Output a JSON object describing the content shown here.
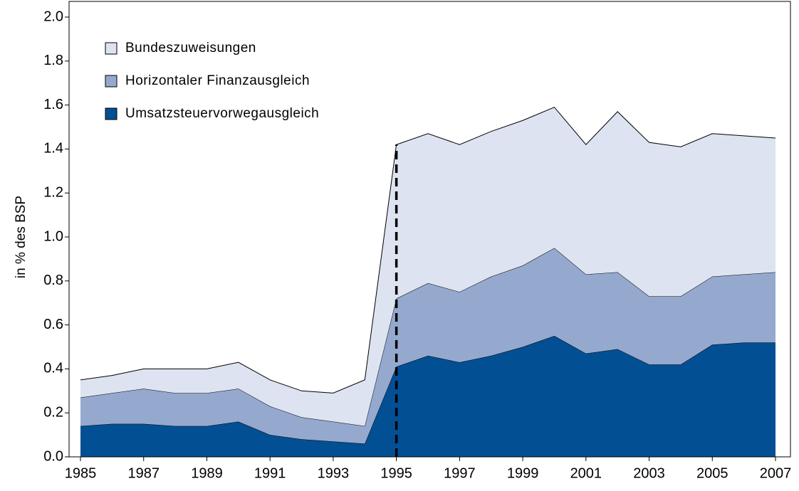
{
  "chart_data": {
    "type": "stacked-area",
    "y_label": "in % des BSP",
    "x": [
      1985,
      1986,
      1987,
      1988,
      1989,
      1990,
      1991,
      1992,
      1993,
      1994,
      1995,
      1996,
      1997,
      1998,
      1999,
      2000,
      2001,
      2002,
      2003,
      2004,
      2005,
      2006,
      2007
    ],
    "xlim": [
      1985,
      2007
    ],
    "xticks": [
      1985,
      1987,
      1989,
      1991,
      1993,
      1995,
      1997,
      1999,
      2001,
      2003,
      2005,
      2007
    ],
    "ylim": [
      0,
      2
    ],
    "yticks": [
      {
        "value": 0,
        "label": "0.0"
      },
      0.2,
      0.4,
      0.6,
      0.8,
      {
        "value": 1,
        "label": "1.0"
      },
      1.2,
      1.4,
      1.6,
      1.8,
      {
        "value": 2,
        "label": "2.0"
      }
    ],
    "series": [
      {
        "name": "Umsatzsteuervorwegausgleich",
        "color": "#034f94",
        "values": [
          0.14,
          0.15,
          0.15,
          0.14,
          0.14,
          0.16,
          0.1,
          0.08,
          0.07,
          0.06,
          0.41,
          0.46,
          0.43,
          0.46,
          0.5,
          0.55,
          0.47,
          0.49,
          0.42,
          0.42,
          0.51,
          0.52,
          0.52
        ]
      },
      {
        "name": "Horizontaler Finanzausgleich",
        "color": "#95a9cf",
        "values": [
          0.13,
          0.14,
          0.16,
          0.15,
          0.15,
          0.15,
          0.13,
          0.1,
          0.09,
          0.08,
          0.31,
          0.33,
          0.32,
          0.36,
          0.37,
          0.4,
          0.36,
          0.35,
          0.31,
          0.31,
          0.31,
          0.31,
          0.32
        ]
      },
      {
        "name": "Bundeszuweisungen",
        "color": "#dde3f0",
        "values": [
          0.08,
          0.08,
          0.09,
          0.11,
          0.11,
          0.12,
          0.12,
          0.12,
          0.13,
          0.21,
          0.7,
          0.68,
          0.67,
          0.66,
          0.66,
          0.64,
          0.59,
          0.73,
          0.7,
          0.68,
          0.65,
          0.63,
          0.61
        ]
      }
    ]
  }
}
